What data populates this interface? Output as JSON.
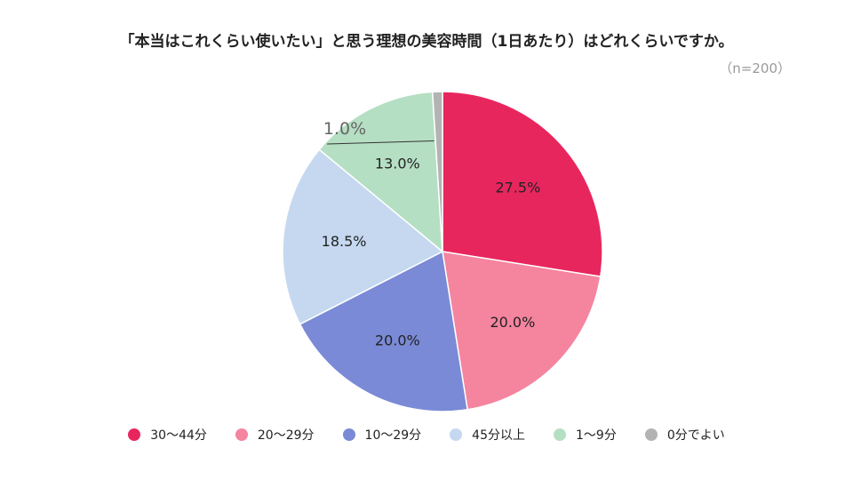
{
  "title": "「本当はこれくらい使いたい」と思う理想の美容時間（1日あたり）はどれくらいですか。",
  "subtitle": "（n=200）",
  "chart_data": {
    "type": "pie",
    "title": "「本当はこれくらい使いたい」と思う理想の美容時間（1日あたり）はどれくらいですか。",
    "subtitle": "（n=200）",
    "unit": "%",
    "legend_position": "bottom",
    "slices": [
      {
        "name": "30〜44分",
        "value": 27.5,
        "label": "27.5%",
        "color": "#e8265e"
      },
      {
        "name": "20〜29分",
        "value": 20.0,
        "label": "20.0%",
        "color": "#f5849f"
      },
      {
        "name": "10〜29分",
        "value": 20.0,
        "label": "20.0%",
        "color": "#7a8ad6"
      },
      {
        "name": "45分以上",
        "value": 18.5,
        "label": "18.5%",
        "color": "#c5d8f0"
      },
      {
        "name": "1〜9分",
        "value": 13.0,
        "label": "13.0%",
        "color": "#b5dfc3"
      },
      {
        "name": "0分でよい",
        "value": 1.0,
        "label": "1.0%",
        "color": "#b3b3b3"
      }
    ]
  }
}
